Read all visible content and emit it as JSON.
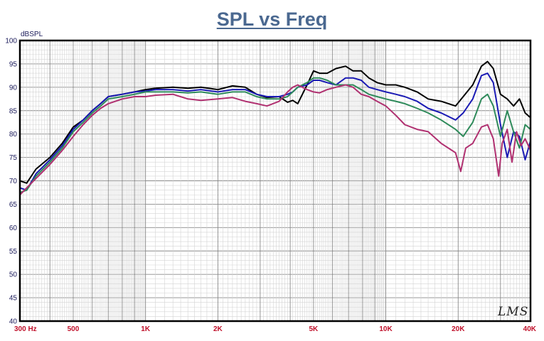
{
  "chart_data": {
    "type": "line",
    "title": "SPL vs Freq",
    "ylabel": "dBSPL",
    "xlabel": "",
    "x_scale": "log",
    "xlim": [
      300,
      40000
    ],
    "ylim": [
      40,
      100
    ],
    "grid": true,
    "y_ticks": [
      40,
      45,
      50,
      55,
      60,
      65,
      70,
      75,
      80,
      85,
      90,
      95,
      100
    ],
    "x_ticks": [
      {
        "value": 300,
        "label": "300 Hz"
      },
      {
        "value": 500,
        "label": "500"
      },
      {
        "value": 1000,
        "label": "1K"
      },
      {
        "value": 2000,
        "label": "2K"
      },
      {
        "value": 5000,
        "label": "5K"
      },
      {
        "value": 10000,
        "label": "10K"
      },
      {
        "value": 20000,
        "label": "20K"
      },
      {
        "value": 40000,
        "label": "40K"
      }
    ],
    "watermark": "LMS",
    "series": [
      {
        "color": "#000000",
        "x": [
          300,
          320,
          350,
          400,
          450,
          500,
          550,
          600,
          650,
          700,
          800,
          900,
          1000,
          1100,
          1300,
          1500,
          1700,
          2000,
          2300,
          2600,
          2900,
          3200,
          3600,
          3900,
          4100,
          4300,
          4700,
          5000,
          5300,
          5700,
          6200,
          6800,
          7300,
          7900,
          8500,
          9200,
          10000,
          11000,
          12000,
          13500,
          15000,
          17000,
          19500,
          21000,
          23000,
          25000,
          26500,
          28000,
          30000,
          32000,
          34000,
          36000,
          38000,
          40000
        ],
        "y": [
          70,
          69.5,
          72.5,
          75,
          78,
          81.5,
          83,
          85,
          86.5,
          88,
          88.5,
          89,
          89.5,
          89.8,
          90,
          89.8,
          90,
          89.5,
          90.3,
          90,
          88.5,
          87.8,
          88,
          86.8,
          87.2,
          86.5,
          90.5,
          93.5,
          93,
          93,
          94,
          94.5,
          93.5,
          93.5,
          92,
          91,
          90.5,
          90.5,
          90,
          89,
          87.5,
          87,
          86,
          88,
          90.5,
          94.5,
          95.5,
          94,
          88.5,
          87.5,
          86,
          87.5,
          84.5,
          83.5
        ]
      },
      {
        "color": "#1a1ab4",
        "x": [
          300,
          320,
          350,
          400,
          450,
          500,
          550,
          600,
          650,
          700,
          800,
          900,
          1000,
          1100,
          1300,
          1500,
          1700,
          2000,
          2300,
          2600,
          2900,
          3200,
          3600,
          3900,
          4100,
          4300,
          4700,
          5000,
          5300,
          5700,
          6200,
          6800,
          7300,
          7900,
          8500,
          9200,
          10000,
          11000,
          12000,
          13500,
          15000,
          17000,
          19500,
          21000,
          23000,
          25000,
          26500,
          28000,
          30000,
          32000,
          34000,
          36000,
          38000,
          40000
        ],
        "y": [
          68.5,
          68,
          71.5,
          74.5,
          77.5,
          81,
          83,
          85,
          86.5,
          88,
          88.5,
          89,
          89.2,
          89.5,
          89.5,
          89.2,
          89.5,
          89,
          89.5,
          89.5,
          88.5,
          88,
          88,
          88.5,
          89,
          90,
          90.5,
          91.5,
          91.5,
          91,
          90.5,
          92,
          92,
          91.5,
          90,
          89.5,
          89,
          88.5,
          88,
          87,
          85.5,
          84.5,
          83,
          84.5,
          87.5,
          92.5,
          93,
          91,
          82,
          75,
          80.5,
          79.5,
          74.5,
          78.5
        ]
      },
      {
        "color": "#2e8a5a",
        "x": [
          300,
          320,
          350,
          400,
          450,
          500,
          550,
          600,
          650,
          700,
          800,
          900,
          1000,
          1100,
          1300,
          1500,
          1700,
          2000,
          2300,
          2600,
          2900,
          3200,
          3600,
          3900,
          4100,
          4300,
          4700,
          5000,
          5300,
          5700,
          6200,
          6800,
          7300,
          7900,
          8500,
          9200,
          10000,
          11000,
          12000,
          13500,
          15000,
          17000,
          19500,
          21000,
          23000,
          25000,
          26500,
          28000,
          30000,
          32000,
          34000,
          36000,
          38000,
          40000
        ],
        "y": [
          67.5,
          68,
          71,
          74,
          77,
          80.5,
          82.5,
          84.5,
          86,
          87.5,
          88,
          88.5,
          89,
          89,
          89,
          88.8,
          89,
          88.5,
          89,
          89,
          88,
          87.5,
          87.5,
          88,
          89,
          90,
          91,
          92,
          92,
          91.5,
          90.5,
          90.5,
          90.5,
          89.5,
          88.5,
          88,
          87.5,
          87,
          86.5,
          85.5,
          84.5,
          83,
          81,
          79.5,
          82.5,
          87.5,
          88.5,
          86,
          79.5,
          85,
          80.5,
          77,
          82,
          81
        ]
      },
      {
        "color": "#b03070",
        "x": [
          300,
          320,
          350,
          400,
          450,
          500,
          550,
          600,
          650,
          700,
          800,
          900,
          1000,
          1100,
          1300,
          1500,
          1700,
          2000,
          2300,
          2600,
          2900,
          3200,
          3600,
          3900,
          4100,
          4300,
          4700,
          5000,
          5300,
          5700,
          6200,
          6800,
          7300,
          7900,
          8500,
          9200,
          10000,
          11000,
          12000,
          13500,
          15000,
          17000,
          19500,
          20500,
          21500,
          23000,
          25000,
          26500,
          28000,
          29500,
          30500,
          32000,
          33500,
          35000,
          36500,
          38000,
          40000
        ],
        "y": [
          67,
          68.5,
          70.5,
          73.5,
          76.5,
          79.5,
          82,
          84,
          85.5,
          86.5,
          87.5,
          88,
          88,
          88.3,
          88.5,
          87.5,
          87.2,
          87.5,
          87.8,
          87,
          86.5,
          86,
          87,
          89,
          90,
          90.5,
          89.5,
          89,
          88.8,
          89.5,
          90,
          90.5,
          90,
          88.5,
          88,
          87,
          86,
          84,
          82,
          81,
          80.5,
          78,
          76,
          72,
          77,
          78,
          81.5,
          82,
          79,
          71,
          78,
          81,
          74,
          80.5,
          77.5,
          79,
          76.5
        ]
      }
    ]
  }
}
